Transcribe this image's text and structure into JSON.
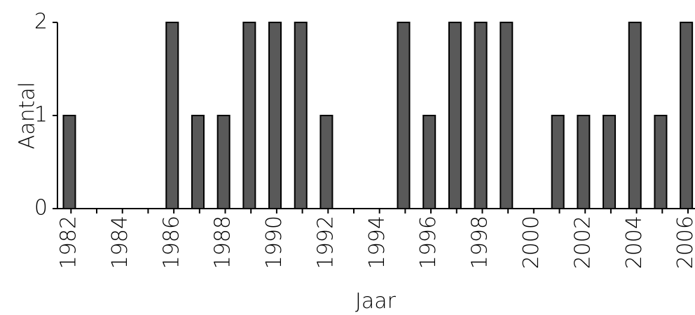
{
  "chart_data": {
    "type": "bar",
    "xlabel": "Jaar",
    "ylabel": "Aantal",
    "ylim": [
      0,
      2
    ],
    "yticks": [
      "0",
      "1",
      "2"
    ],
    "grid": false,
    "legend": "none",
    "bar_color": "#595959",
    "bar_outline": "#000000",
    "x": [
      1982,
      1983,
      1984,
      1985,
      1986,
      1987,
      1988,
      1989,
      1990,
      1991,
      1992,
      1993,
      1994,
      1995,
      1996,
      1997,
      1998,
      1999,
      2000,
      2001,
      2002,
      2003,
      2004,
      2005,
      2006
    ],
    "values": [
      1,
      0,
      0,
      0,
      2,
      1,
      1,
      2,
      2,
      2,
      1,
      0,
      0,
      2,
      1,
      2,
      2,
      2,
      0,
      1,
      1,
      1,
      2,
      1,
      2
    ],
    "tick_labels": [
      "1982",
      "1984",
      "1986",
      "1988",
      "1990",
      "1992",
      "1994",
      "1996",
      "1998",
      "2000",
      "2002",
      "2004",
      "2006"
    ]
  }
}
